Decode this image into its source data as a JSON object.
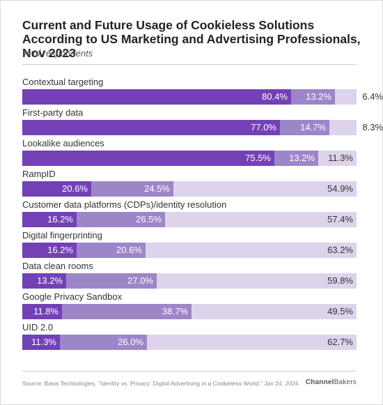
{
  "title": "Current and Future Usage of Cookieless Solutions According to US Marketing and Advertising Professionals, Nov 2023",
  "subtitle": "% of respondents",
  "source": "Source: Basis Technologies, \"Identity vs. Privacy: Digital Advertising in a Cookieless World,\" Jan 24, 2024",
  "brand": {
    "part1": "Channel",
    "part2": "Bakers"
  },
  "colors": {
    "series1": "#7341b5",
    "series2": "#9d86c8",
    "series3": "#ddd3eb"
  },
  "chart_data": {
    "type": "bar",
    "orientation": "horizontal",
    "stacked": true,
    "categories": [
      "Contextual targeting",
      "First-party data",
      "Lookalike audiences",
      "RampID",
      "Customer data platforms (CDPs)/identity resolution",
      "Digital fingerprinting",
      "Data clean rooms",
      "Google Privacy Sandbox",
      "UID 2.0"
    ],
    "series": [
      {
        "values": [
          80.4,
          77.0,
          75.5,
          20.6,
          16.2,
          16.2,
          13.2,
          11.8,
          11.3
        ]
      },
      {
        "values": [
          13.2,
          14.7,
          13.2,
          24.5,
          26.5,
          20.6,
          27.0,
          38.7,
          26.0
        ]
      },
      {
        "values": [
          6.4,
          8.3,
          11.3,
          54.9,
          57.4,
          63.2,
          59.8,
          49.5,
          62.7
        ]
      }
    ],
    "labels": [
      [
        "80.4%",
        "13.2%",
        "6.4%"
      ],
      [
        "77.0%",
        "14.7%",
        "8.3%"
      ],
      [
        "75.5%",
        "13.2%",
        "11.3%"
      ],
      [
        "20.6%",
        "24.5%",
        "54.9%"
      ],
      [
        "16.2%",
        "26.5%",
        "57.4%"
      ],
      [
        "16.2%",
        "20.6%",
        "63.2%"
      ],
      [
        "13.2%",
        "27.0%",
        "59.8%"
      ],
      [
        "11.8%",
        "38.7%",
        "49.5%"
      ],
      [
        "11.3%",
        "26.0%",
        "62.7%"
      ]
    ],
    "xlim": [
      0,
      100
    ],
    "legend": "none"
  }
}
